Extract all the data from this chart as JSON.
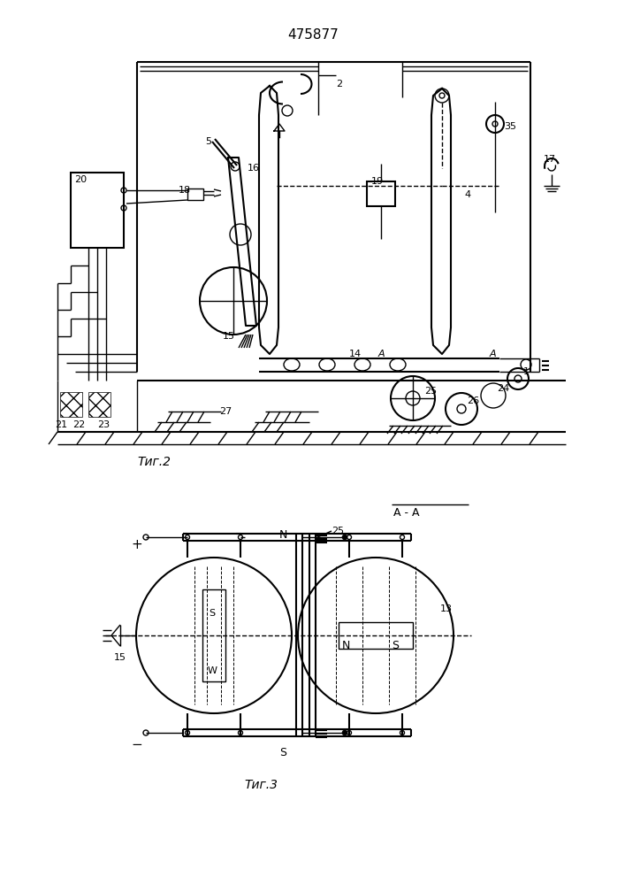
{
  "title": "475877",
  "fig2_label": "Τиг.2",
  "fig3_label": "Τиг.3",
  "bg_color": "#ffffff",
  "line_color": "#000000",
  "fig_width": 7.07,
  "fig_height": 10.0,
  "dpi": 100
}
